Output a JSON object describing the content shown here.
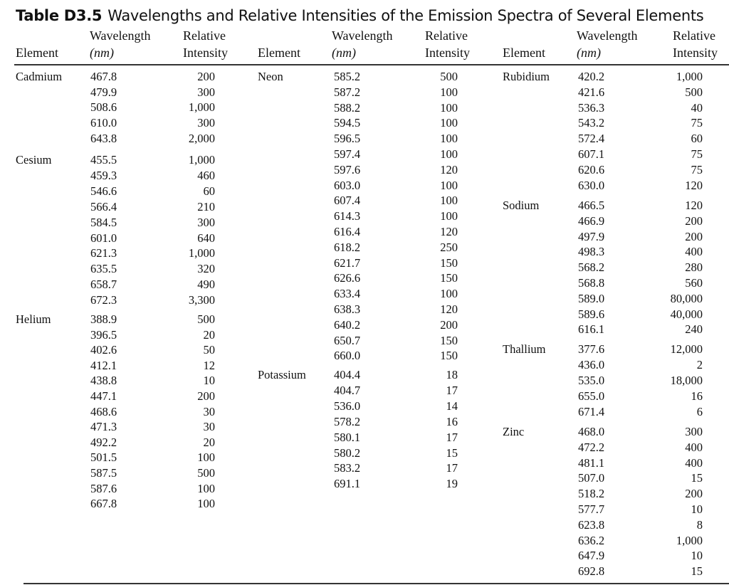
{
  "title": {
    "label": "Table D3.5",
    "text": "Wavelengths and Relative Intensities of the Emission Spectra of Several Elements"
  },
  "headers": {
    "element": "Element",
    "wavelength_line1": "Wavelength",
    "wavelength_line2": "(nm)",
    "intensity_line1": "Relative",
    "intensity_line2": "Intensity"
  },
  "columns": [
    {
      "elements": [
        {
          "name": "Cadmium",
          "lines": [
            {
              "wl": "467.8",
              "ri": "200"
            },
            {
              "wl": "479.9",
              "ri": "300"
            },
            {
              "wl": "508.6",
              "ri": "1,000"
            },
            {
              "wl": "610.0",
              "ri": "300"
            },
            {
              "wl": "643.8",
              "ri": "2,000"
            }
          ]
        },
        {
          "name": "Cesium",
          "lines": [
            {
              "wl": "455.5",
              "ri": "1,000"
            },
            {
              "wl": "459.3",
              "ri": "460"
            },
            {
              "wl": "546.6",
              "ri": "60"
            },
            {
              "wl": "566.4",
              "ri": "210"
            },
            {
              "wl": "584.5",
              "ri": "300"
            },
            {
              "wl": "601.0",
              "ri": "640"
            },
            {
              "wl": "621.3",
              "ri": "1,000"
            },
            {
              "wl": "635.5",
              "ri": "320"
            },
            {
              "wl": "658.7",
              "ri": "490"
            },
            {
              "wl": "672.3",
              "ri": "3,300"
            }
          ]
        },
        {
          "name": "Helium",
          "lines": [
            {
              "wl": "388.9",
              "ri": "500"
            },
            {
              "wl": "396.5",
              "ri": "20"
            },
            {
              "wl": "402.6",
              "ri": "50"
            },
            {
              "wl": "412.1",
              "ri": "12"
            },
            {
              "wl": "438.8",
              "ri": "10"
            },
            {
              "wl": "447.1",
              "ri": "200"
            },
            {
              "wl": "468.6",
              "ri": "30"
            },
            {
              "wl": "471.3",
              "ri": "30"
            },
            {
              "wl": "492.2",
              "ri": "20"
            },
            {
              "wl": "501.5",
              "ri": "100"
            },
            {
              "wl": "587.5",
              "ri": "500"
            },
            {
              "wl": "587.6",
              "ri": "100"
            },
            {
              "wl": "667.8",
              "ri": "100"
            }
          ]
        }
      ]
    },
    {
      "elements": [
        {
          "name": "Neon",
          "lines": [
            {
              "wl": "585.2",
              "ri": "500"
            },
            {
              "wl": "587.2",
              "ri": "100"
            },
            {
              "wl": "588.2",
              "ri": "100"
            },
            {
              "wl": "594.5",
              "ri": "100"
            },
            {
              "wl": "596.5",
              "ri": "100"
            },
            {
              "wl": "597.4",
              "ri": "100"
            },
            {
              "wl": "597.6",
              "ri": "120"
            },
            {
              "wl": "603.0",
              "ri": "100"
            },
            {
              "wl": "607.4",
              "ri": "100"
            },
            {
              "wl": "614.3",
              "ri": "100"
            },
            {
              "wl": "616.4",
              "ri": "120"
            },
            {
              "wl": "618.2",
              "ri": "250"
            },
            {
              "wl": "621.7",
              "ri": "150"
            },
            {
              "wl": "626.6",
              "ri": "150"
            },
            {
              "wl": "633.4",
              "ri": "100"
            },
            {
              "wl": "638.3",
              "ri": "120"
            },
            {
              "wl": "640.2",
              "ri": "200"
            },
            {
              "wl": "650.7",
              "ri": "150"
            },
            {
              "wl": "660.0",
              "ri": "150"
            }
          ]
        },
        {
          "name": "Potassium",
          "lines": [
            {
              "wl": "404.4",
              "ri": "18"
            },
            {
              "wl": "404.7",
              "ri": "17"
            },
            {
              "wl": "536.0",
              "ri": "14"
            },
            {
              "wl": "578.2",
              "ri": "16"
            },
            {
              "wl": "580.1",
              "ri": "17"
            },
            {
              "wl": "580.2",
              "ri": "15"
            },
            {
              "wl": "583.2",
              "ri": "17"
            },
            {
              "wl": "691.1",
              "ri": "19"
            }
          ]
        }
      ]
    },
    {
      "elements": [
        {
          "name": "Rubidium",
          "lines": [
            {
              "wl": "420.2",
              "ri": "1,000"
            },
            {
              "wl": "421.6",
              "ri": "500"
            },
            {
              "wl": "536.3",
              "ri": "40"
            },
            {
              "wl": "543.2",
              "ri": "75"
            },
            {
              "wl": "572.4",
              "ri": "60"
            },
            {
              "wl": "607.1",
              "ri": "75"
            },
            {
              "wl": "620.6",
              "ri": "75"
            },
            {
              "wl": "630.0",
              "ri": "120"
            }
          ]
        },
        {
          "name": "Sodium",
          "lines": [
            {
              "wl": "466.5",
              "ri": "120"
            },
            {
              "wl": "466.9",
              "ri": "200"
            },
            {
              "wl": "497.9",
              "ri": "200"
            },
            {
              "wl": "498.3",
              "ri": "400"
            },
            {
              "wl": "568.2",
              "ri": "280"
            },
            {
              "wl": "568.8",
              "ri": "560"
            },
            {
              "wl": "589.0",
              "ri": "80,000"
            },
            {
              "wl": "589.6",
              "ri": "40,000"
            },
            {
              "wl": "616.1",
              "ri": "240"
            }
          ]
        },
        {
          "name": "Thallium",
          "lines": [
            {
              "wl": "377.6",
              "ri": "12,000"
            },
            {
              "wl": "436.0",
              "ri": "2"
            },
            {
              "wl": "535.0",
              "ri": "18,000"
            },
            {
              "wl": "655.0",
              "ri": "16"
            },
            {
              "wl": "671.4",
              "ri": "6"
            }
          ]
        },
        {
          "name": "Zinc",
          "lines": [
            {
              "wl": "468.0",
              "ri": "300"
            },
            {
              "wl": "472.2",
              "ri": "400"
            },
            {
              "wl": "481.1",
              "ri": "400"
            },
            {
              "wl": "507.0",
              "ri": "15"
            },
            {
              "wl": "518.2",
              "ri": "200"
            },
            {
              "wl": "577.7",
              "ri": "10"
            },
            {
              "wl": "623.8",
              "ri": "8"
            },
            {
              "wl": "636.2",
              "ri": "1,000"
            },
            {
              "wl": "647.9",
              "ri": "10"
            },
            {
              "wl": "692.8",
              "ri": "15"
            }
          ]
        }
      ]
    }
  ]
}
